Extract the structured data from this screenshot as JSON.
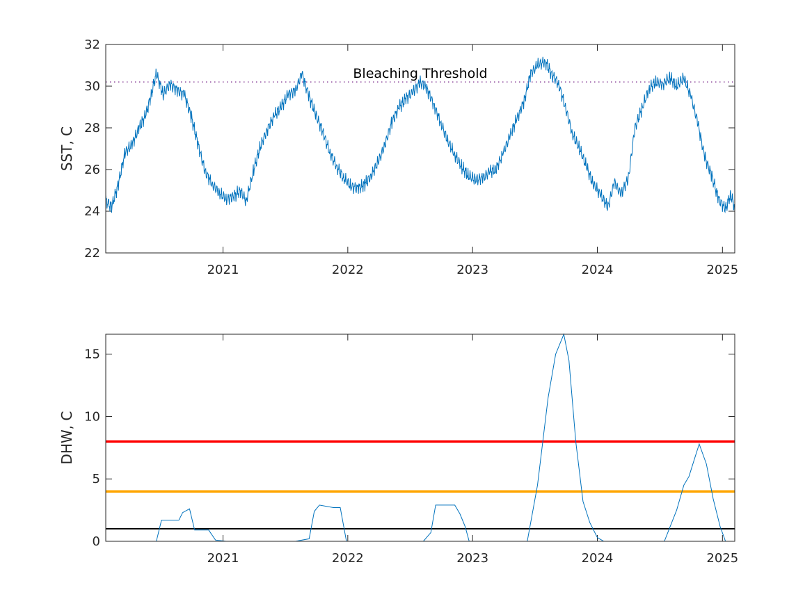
{
  "colors": {
    "series": "#0072BD",
    "threshold": "#7E2F8E",
    "level_red": "#FF0000",
    "level_orange": "#FFA500",
    "level_black": "#000000",
    "axes": "#262626"
  },
  "chart_data": [
    {
      "type": "line",
      "ylabel": "SST, C",
      "xlabel": "",
      "xlim": [
        "2020-01-24",
        "2025-02-06"
      ],
      "ylim": [
        22,
        32
      ],
      "x_ticks": [
        "2021",
        "2022",
        "2023",
        "2024",
        "2025"
      ],
      "y_ticks": [
        "22",
        "24",
        "26",
        "28",
        "30",
        "32"
      ],
      "grid": false,
      "annotation": "Bleaching Threshold",
      "threshold": {
        "value": 30.2,
        "style": "dotted"
      },
      "series": [
        {
          "points": [
            [
              "2020-01-24",
              24.5
            ],
            [
              "2020-02-10",
              24.2
            ],
            [
              "2020-03-01",
              25.3
            ],
            [
              "2020-03-20",
              26.8
            ],
            [
              "2020-04-10",
              27.2
            ],
            [
              "2020-05-01",
              28.0
            ],
            [
              "2020-05-20",
              28.6
            ],
            [
              "2020-06-05",
              29.6
            ],
            [
              "2020-06-20",
              30.6
            ],
            [
              "2020-07-10",
              29.6
            ],
            [
              "2020-07-30",
              30.1
            ],
            [
              "2020-08-20",
              29.8
            ],
            [
              "2020-09-10",
              29.6
            ],
            [
              "2020-10-01",
              28.5
            ],
            [
              "2020-10-20",
              27.2
            ],
            [
              "2020-11-10",
              25.9
            ],
            [
              "2020-12-01",
              25.3
            ],
            [
              "2020-12-20",
              24.9
            ],
            [
              "2021-01-10",
              24.6
            ],
            [
              "2021-02-01",
              24.7
            ],
            [
              "2021-02-20",
              25.0
            ],
            [
              "2021-03-10",
              24.5
            ],
            [
              "2021-04-01",
              26.0
            ],
            [
              "2021-04-20",
              27.1
            ],
            [
              "2021-05-10",
              27.9
            ],
            [
              "2021-06-01",
              28.6
            ],
            [
              "2021-06-20",
              29.0
            ],
            [
              "2021-07-10",
              29.6
            ],
            [
              "2021-08-01",
              29.8
            ],
            [
              "2021-08-20",
              30.6
            ],
            [
              "2021-09-10",
              29.5
            ],
            [
              "2021-09-30",
              28.6
            ],
            [
              "2021-10-20",
              27.8
            ],
            [
              "2021-11-10",
              26.8
            ],
            [
              "2021-12-01",
              26.1
            ],
            [
              "2021-12-20",
              25.6
            ],
            [
              "2022-01-10",
              25.2
            ],
            [
              "2022-02-01",
              25.1
            ],
            [
              "2022-02-20",
              25.3
            ],
            [
              "2022-03-10",
              25.7
            ],
            [
              "2022-04-01",
              26.4
            ],
            [
              "2022-04-20",
              27.2
            ],
            [
              "2022-05-10",
              28.3
            ],
            [
              "2022-06-01",
              29.0
            ],
            [
              "2022-06-20",
              29.4
            ],
            [
              "2022-07-10",
              29.7
            ],
            [
              "2022-08-01",
              30.2
            ],
            [
              "2022-08-20",
              29.9
            ],
            [
              "2022-09-10",
              29.1
            ],
            [
              "2022-10-01",
              28.2
            ],
            [
              "2022-10-20",
              27.4
            ],
            [
              "2022-11-10",
              26.7
            ],
            [
              "2022-12-01",
              26.1
            ],
            [
              "2022-12-20",
              25.7
            ],
            [
              "2023-01-10",
              25.5
            ],
            [
              "2023-02-01",
              25.6
            ],
            [
              "2023-02-20",
              25.9
            ],
            [
              "2023-03-10",
              26.0
            ],
            [
              "2023-04-01",
              26.8
            ],
            [
              "2023-04-20",
              27.6
            ],
            [
              "2023-05-10",
              28.4
            ],
            [
              "2023-06-01",
              29.3
            ],
            [
              "2023-06-20",
              30.6
            ],
            [
              "2023-07-10",
              31.0
            ],
            [
              "2023-08-01",
              31.2
            ],
            [
              "2023-08-20",
              30.6
            ],
            [
              "2023-09-10",
              30.1
            ],
            [
              "2023-10-01",
              28.9
            ],
            [
              "2023-10-20",
              27.7
            ],
            [
              "2023-11-10",
              27.0
            ],
            [
              "2023-12-01",
              26.1
            ],
            [
              "2023-12-20",
              25.3
            ],
            [
              "2024-01-10",
              24.8
            ],
            [
              "2024-02-01",
              24.2
            ],
            [
              "2024-02-20",
              25.4
            ],
            [
              "2024-03-10",
              24.8
            ],
            [
              "2024-04-01",
              25.6
            ],
            [
              "2024-04-20",
              28.0
            ],
            [
              "2024-05-10",
              28.9
            ],
            [
              "2024-06-01",
              29.9
            ],
            [
              "2024-06-20",
              30.2
            ],
            [
              "2024-07-10",
              30.1
            ],
            [
              "2024-08-01",
              30.4
            ],
            [
              "2024-08-20",
              30.0
            ],
            [
              "2024-09-10",
              30.4
            ],
            [
              "2024-10-01",
              29.5
            ],
            [
              "2024-10-20",
              28.3
            ],
            [
              "2024-11-10",
              26.6
            ],
            [
              "2024-12-01",
              25.7
            ],
            [
              "2024-12-20",
              24.6
            ],
            [
              "2025-01-10",
              24.1
            ],
            [
              "2025-01-25",
              24.8
            ],
            [
              "2025-02-06",
              24.2
            ]
          ]
        }
      ]
    },
    {
      "type": "line",
      "ylabel": "DHW, C",
      "xlabel": "",
      "xlim": [
        "2020-01-24",
        "2025-02-06"
      ],
      "ylim": [
        0,
        16.6
      ],
      "x_ticks": [
        "2021",
        "2022",
        "2023",
        "2024",
        "2025"
      ],
      "y_ticks": [
        "0",
        "5",
        "10",
        "15"
      ],
      "grid": false,
      "reference_lines": [
        {
          "value": 8,
          "color": "red"
        },
        {
          "value": 4,
          "color": "orange"
        },
        {
          "value": 1,
          "color": "black"
        }
      ],
      "series": [
        {
          "points": [
            [
              "2020-01-24",
              0
            ],
            [
              "2020-06-20",
              0
            ],
            [
              "2020-07-05",
              1.7
            ],
            [
              "2020-08-25",
              1.7
            ],
            [
              "2020-09-05",
              2.3
            ],
            [
              "2020-09-25",
              2.6
            ],
            [
              "2020-10-10",
              0.9
            ],
            [
              "2020-11-20",
              0.9
            ],
            [
              "2020-12-10",
              0.1
            ],
            [
              "2021-01-10",
              0
            ],
            [
              "2021-08-01",
              0
            ],
            [
              "2021-08-20",
              0.1
            ],
            [
              "2021-09-10",
              0.2
            ],
            [
              "2021-09-25",
              2.4
            ],
            [
              "2021-10-10",
              2.9
            ],
            [
              "2021-11-20",
              2.7
            ],
            [
              "2021-12-10",
              2.7
            ],
            [
              "2021-12-28",
              0
            ],
            [
              "2022-08-10",
              0
            ],
            [
              "2022-09-01",
              0.7
            ],
            [
              "2022-09-15",
              2.9
            ],
            [
              "2022-11-10",
              2.9
            ],
            [
              "2022-11-25",
              2.2
            ],
            [
              "2022-12-10",
              1.2
            ],
            [
              "2022-12-22",
              0
            ],
            [
              "2023-06-10",
              0
            ],
            [
              "2023-07-10",
              4.5
            ],
            [
              "2023-08-10",
              11.5
            ],
            [
              "2023-09-01",
              15.0
            ],
            [
              "2023-09-25",
              16.8
            ],
            [
              "2023-10-10",
              14.5
            ],
            [
              "2023-10-30",
              8.0
            ],
            [
              "2023-11-20",
              3.2
            ],
            [
              "2023-12-10",
              1.5
            ],
            [
              "2024-01-01",
              0.3
            ],
            [
              "2024-01-20",
              0
            ],
            [
              "2024-07-15",
              0
            ],
            [
              "2024-08-20",
              2.5
            ],
            [
              "2024-09-10",
              4.5
            ],
            [
              "2024-09-25",
              5.2
            ],
            [
              "2024-10-10",
              6.5
            ],
            [
              "2024-10-25",
              7.8
            ],
            [
              "2024-11-15",
              6.2
            ],
            [
              "2024-12-05",
              3.4
            ],
            [
              "2024-12-25",
              1.2
            ],
            [
              "2025-01-10",
              0
            ],
            [
              "2025-02-06",
              0
            ]
          ]
        }
      ]
    }
  ]
}
